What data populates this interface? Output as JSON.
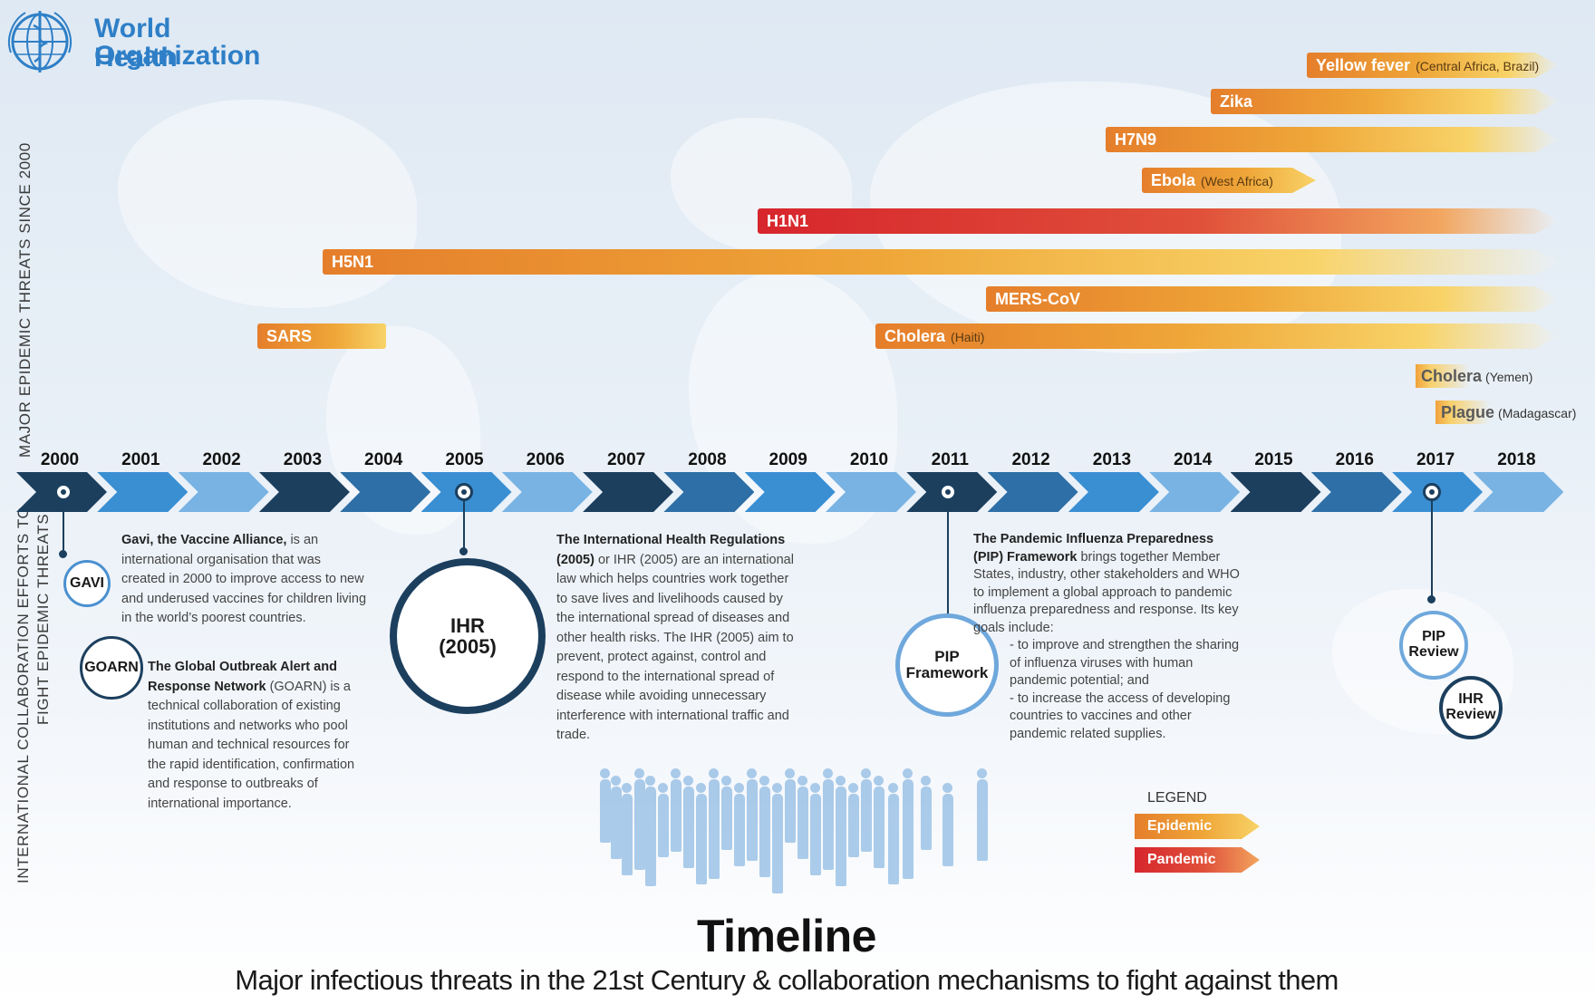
{
  "logo": {
    "line1": "World Health",
    "line2": "Organization",
    "icon": "who-emblem-icon"
  },
  "side_labels": {
    "threats": "MAJOR EPIDEMIC THREATS SINCE 2000",
    "collab_line1": "INTERNATIONAL COLLABORATION EFFORTS TO",
    "collab_line2": "FIGHT EPIDEMIC THREATS"
  },
  "threats": [
    {
      "name": "Yellow fever",
      "note": "(Central Africa, Brazil)",
      "type": "Epidemic",
      "start_year": 2016
    },
    {
      "name": "Zika",
      "note": "",
      "type": "Epidemic",
      "start_year": 2015
    },
    {
      "name": "H7N9",
      "note": "",
      "type": "Epidemic",
      "start_year": 2013
    },
    {
      "name": "Ebola",
      "note": "(West Africa)",
      "type": "Epidemic",
      "start_year": 2014,
      "end_year": 2016
    },
    {
      "name": "H1N1",
      "note": "",
      "type": "Pandemic",
      "start_year": 2009
    },
    {
      "name": "H5N1",
      "note": "",
      "type": "Epidemic",
      "start_year": 2003
    },
    {
      "name": "MERS-CoV",
      "note": "",
      "type": "Epidemic",
      "start_year": 2012
    },
    {
      "name": "SARS",
      "note": "",
      "type": "Epidemic",
      "start_year": 2002,
      "end_year": 2003
    },
    {
      "name": "Cholera",
      "note": "(Haiti)",
      "type": "Epidemic",
      "start_year": 2010
    },
    {
      "name": "Cholera",
      "note": "(Yemen)",
      "type": "Epidemic",
      "start_year": 2017
    },
    {
      "name": "Plague",
      "note": "(Madagascar)",
      "type": "Epidemic",
      "start_year": 2017
    }
  ],
  "years": [
    "2000",
    "2001",
    "2002",
    "2003",
    "2004",
    "2005",
    "2006",
    "2007",
    "2008",
    "2009",
    "2010",
    "2011",
    "2012",
    "2013",
    "2014",
    "2015",
    "2016",
    "2017",
    "2018"
  ],
  "colors": {
    "dark": "#1c3f5e",
    "mid": "#2d6fa6",
    "bright": "#3a8fd3",
    "light": "#78b3e3",
    "epidemic": "#ef9a36",
    "pandemic": "#d7262d"
  },
  "mechanisms": {
    "gavi": {
      "badge": "GAVI",
      "title": "Gavi, the Vaccine Alliance,",
      "body": " is an international organisation that was created in 2000 to improve access to new and underused vaccines for children living in the world’s poorest countries."
    },
    "goarn": {
      "badge": "GOARN",
      "title": "The Global Outbreak Alert and Response Network",
      "body": " (GOARN) is a technical collaboration of existing institutions and networks who pool human and technical resources for the rapid identification, confirmation and response to outbreaks of international importance."
    },
    "ihr": {
      "badge_line1": "IHR",
      "badge_line2": "(2005)",
      "title": "The International Health Regulations (2005)",
      "body": " or IHR (2005) are an international law which helps countries work together to save lives and livelihoods caused by the international spread of diseases and other health risks. The IHR (2005) aim to prevent, protect against, control and respond to the international spread of disease while avoiding unnecessary interference with international traffic and trade."
    },
    "pip": {
      "badge_line1": "PIP",
      "badge_line2": "Framework",
      "title": "The Pandemic Influenza Preparedness (PIP) Framework",
      "body": " brings together Member States, industry, other stakeholders and WHO to implement a global approach to pandemic influenza preparedness and response. Its key goals include:",
      "goals": [
        "- to improve and strengthen the sharing of influenza viruses with human pandemic potential; and",
        "- to increase the access of developing countries to vaccines and other pandemic related supplies."
      ]
    },
    "pip_review": {
      "line1": "PIP",
      "line2": "Review"
    },
    "ihr_review": {
      "line1": "IHR",
      "line2": "Review"
    }
  },
  "legend": {
    "title": "LEGEND",
    "epidemic": "Epidemic",
    "pandemic": "Pandemic"
  },
  "footer": {
    "title": "Timeline",
    "subtitle": "Major infectious threats in the 21st Century & collaboration mechanisms to fight against them"
  }
}
